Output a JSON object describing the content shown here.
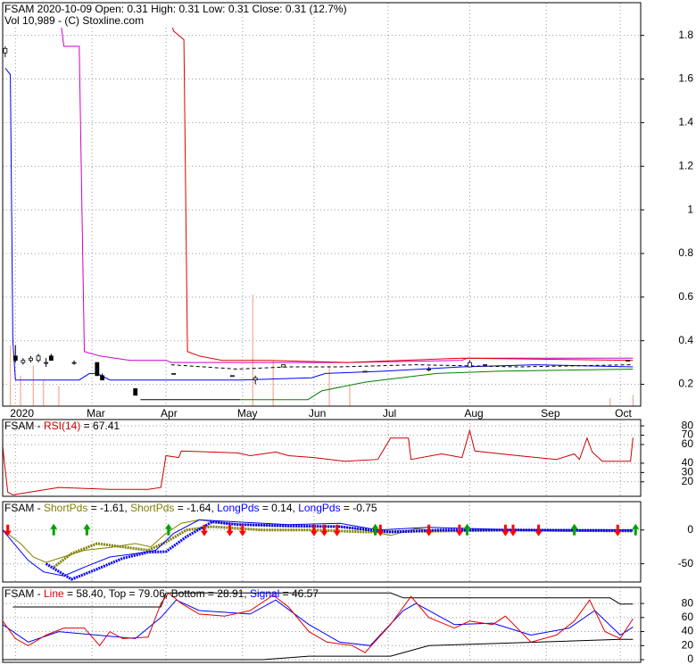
{
  "chart_data": [
    {
      "type": "stock",
      "title": "FSAM  2020-10-09 Open: 0.31  High: 0.31  Low: 0.31  Close: 0.31 (12.7%)",
      "subtitle": "Vol 10,989   - (C) Stoxline.com",
      "xlim": [
        -2,
        248
      ],
      "xticks": [
        {
          "value": 3,
          "label": "2020"
        },
        {
          "value": 33,
          "label": "Mar"
        },
        {
          "value": 62,
          "label": "Apr"
        },
        {
          "value": 92,
          "label": "May"
        },
        {
          "value": 120,
          "label": "Jun"
        },
        {
          "value": 149,
          "label": "Jul"
        },
        {
          "value": 181,
          "label": "Aug"
        },
        {
          "value": 211,
          "label": "Sep"
        },
        {
          "value": 240,
          "label": "Oct"
        }
      ],
      "ylim": [
        0.1,
        1.95
      ],
      "yticks": [
        0.2,
        0.4,
        0.6,
        0.8,
        1.0,
        1.2,
        1.4,
        1.6,
        1.8
      ],
      "grid": true,
      "series": [
        {
          "color": "#cc00cc",
          "x": [
            20,
            22,
            28,
            30,
            36,
            48,
            62,
            64,
            133,
            178,
            180,
            245
          ],
          "values": [
            1.93,
            1.75,
            1.75,
            0.35,
            0.33,
            0.31,
            0.31,
            0.3,
            0.3,
            0.31,
            0.32,
            0.32
          ]
        },
        {
          "color": "#e00000",
          "x": [
            58,
            64,
            65,
            69,
            70.4,
            75,
            84,
            102,
            133,
            178,
            245
          ],
          "values": [
            1.85,
            1.85,
            1.82,
            1.78,
            0.35,
            0.33,
            0.31,
            0.31,
            0.3,
            0.32,
            0.31
          ]
        },
        {
          "color": "#0000ff",
          "x": [
            -1,
            1,
            2,
            3,
            28,
            32,
            35,
            40,
            63,
            91,
            119,
            124.5,
            147,
            178,
            207,
            245
          ],
          "values": [
            1.65,
            1.62,
            0.4,
            0.22,
            0.22,
            0.25,
            0.25,
            0.22,
            0.22,
            0.22,
            0.23,
            0.25,
            0.26,
            0.28,
            0.29,
            0.28
          ]
        },
        {
          "color": "#008000",
          "x": [
            91,
            117.6,
            123,
            140,
            168,
            192,
            245
          ],
          "values": [
            0.13,
            0.13,
            0.17,
            0.21,
            0.25,
            0.26,
            0.27
          ]
        },
        {
          "color": "#000000",
          "x": [
            52,
            91
          ],
          "values": [
            0.13,
            0.13
          ]
        },
        {
          "color": "#000000",
          "dashed": true,
          "x": [
            64,
            90,
            110,
            130,
            160,
            200,
            245
          ],
          "values": [
            0.29,
            0.27,
            0.28,
            0.28,
            0.29,
            0.28,
            0.29
          ]
        }
      ],
      "candles": {
        "x": [
          -1,
          3,
          6,
          9,
          12,
          15,
          17,
          26,
          35,
          37,
          50,
          65,
          88,
          97,
          108,
          140,
          165,
          181,
          187,
          243
        ],
        "open": [
          1.72,
          0.33,
          0.3,
          0.31,
          0.31,
          0.3,
          0.33,
          0.3,
          0.3,
          0.24,
          0.18,
          0.25,
          0.24,
          0.22,
          0.28,
          0.26,
          0.27,
          0.28,
          0.29,
          0.31
        ],
        "high": [
          1.75,
          0.38,
          0.32,
          0.33,
          0.34,
          0.32,
          0.34,
          0.31,
          0.3,
          0.25,
          0.18,
          0.25,
          0.24,
          0.24,
          0.29,
          0.26,
          0.28,
          0.31,
          0.29,
          0.31
        ],
        "low": [
          1.7,
          0.3,
          0.29,
          0.3,
          0.3,
          0.28,
          0.31,
          0.29,
          0.24,
          0.22,
          0.15,
          0.25,
          0.24,
          0.2,
          0.28,
          0.26,
          0.26,
          0.28,
          0.29,
          0.31
        ],
        "close": [
          1.74,
          0.31,
          0.31,
          0.32,
          0.33,
          0.3,
          0.31,
          0.3,
          0.24,
          0.22,
          0.15,
          0.25,
          0.24,
          0.23,
          0.29,
          0.26,
          0.27,
          0.3,
          0.29,
          0.31
        ]
      },
      "volume": {
        "color": "#f4a890",
        "x": [
          1,
          5,
          10,
          14,
          20,
          96,
          104,
          126,
          134,
          236,
          245
        ],
        "values": [
          60000,
          30000,
          40000,
          25000,
          20000,
          110000,
          45000,
          40000,
          20000,
          8000,
          10989
        ]
      }
    },
    {
      "type": "line",
      "title_parts": [
        {
          "text": "FSAM - "
        },
        {
          "text": "RSI(14)",
          "color": "#cc0000"
        },
        {
          "text": " = 67.41"
        }
      ],
      "xlim": [
        -2,
        248
      ],
      "ylim": [
        4.5,
        86.8
      ],
      "yticks": [
        20,
        30,
        40,
        60,
        70,
        80
      ],
      "grid": true,
      "series": [
        {
          "color": "#cc0000",
          "x": [
            -2,
            0,
            2,
            20,
            40,
            55,
            60,
            62,
            67,
            68,
            90,
            95,
            105,
            110,
            120,
            132,
            145,
            150,
            157,
            158,
            170,
            178,
            181,
            183,
            200,
            215,
            222,
            224,
            227,
            229,
            233,
            244,
            245
          ],
          "values": [
            57.7,
            9,
            6,
            14,
            12,
            12,
            14,
            48,
            46,
            53,
            51,
            48,
            52,
            48,
            46,
            42,
            44,
            67,
            67,
            44,
            50,
            46,
            75,
            53,
            48,
            44,
            50,
            44,
            67,
            52,
            42,
            42,
            67.41
          ]
        }
      ]
    },
    {
      "type": "line",
      "title_parts": [
        {
          "text": "FSAM - "
        },
        {
          "text": "ShortPds",
          "color": "#808000"
        },
        {
          "text": " = -1.61, "
        },
        {
          "text": "ShortPds",
          "color": "#808000"
        },
        {
          "text": " = -1.64, "
        },
        {
          "text": "LongPds",
          "color": "#0000ff"
        },
        {
          "text": " = 0.14, "
        },
        {
          "text": "LongPds",
          "color": "#0000ff"
        },
        {
          "text": " = -0.75"
        }
      ],
      "xlim": [
        -2,
        248
      ],
      "ylim": [
        -77,
        42
      ],
      "yticks": [
        -50,
        0
      ],
      "grid": true,
      "series": [
        {
          "color": "#808000",
          "x": [
            -2,
            5,
            10,
            15,
            20,
            30,
            40,
            50,
            56,
            62,
            68,
            75,
            85,
            95,
            110,
            130,
            140,
            150,
            160,
            170,
            190,
            220,
            245
          ],
          "values": [
            0,
            -20,
            -40,
            -48,
            -42,
            -30,
            -26,
            -20,
            -25,
            -5,
            10,
            15,
            10,
            8,
            5,
            5,
            0,
            -8,
            2,
            -2,
            0,
            -2,
            -1.61
          ]
        },
        {
          "color": "#808000",
          "dotted": true,
          "x": [
            18,
            25,
            35,
            45,
            55,
            62,
            70,
            80,
            100,
            120,
            140,
            160,
            200,
            245
          ],
          "values": [
            -55,
            -35,
            -20,
            -25,
            -30,
            -18,
            0,
            5,
            0,
            0,
            -3,
            -2,
            0,
            -1.64
          ]
        },
        {
          "color": "#0000ff",
          "x": [
            -2,
            8,
            14,
            22,
            30,
            40,
            50,
            58,
            65,
            75,
            90,
            110,
            130,
            145,
            165,
            200,
            245
          ],
          "values": [
            0,
            -45,
            -62,
            -68,
            -55,
            -40,
            -35,
            -30,
            -5,
            15,
            12,
            8,
            10,
            0,
            4,
            0,
            0.14
          ]
        },
        {
          "color": "#0000ff",
          "dotted": true,
          "x": [
            15,
            25,
            35,
            45,
            55,
            62,
            70,
            80,
            90,
            110,
            130,
            150,
            170,
            200,
            245
          ],
          "values": [
            -50,
            -73,
            -58,
            -42,
            -33,
            -32,
            -10,
            12,
            8,
            6,
            5,
            -3,
            0,
            0,
            -0.75
          ]
        }
      ],
      "buy_signals": [
        18,
        31,
        63,
        144,
        180,
        222,
        246
      ],
      "sell_signals": [
        0,
        77,
        87,
        92,
        120,
        124,
        129,
        146,
        165,
        177,
        195,
        198,
        208,
        239
      ]
    },
    {
      "type": "line",
      "title_parts": [
        {
          "text": "FSAM - "
        },
        {
          "text": "Line",
          "color": "#e00000"
        },
        {
          "text": " = 58.40, "
        },
        {
          "text": "Top"
        },
        {
          "text": " = 79.06, "
        },
        {
          "text": "Bottom"
        },
        {
          "text": " = 28.91, "
        },
        {
          "text": "Signal",
          "color": "#0000ff"
        },
        {
          "text": " = 46.57"
        }
      ],
      "xlim": [
        -2,
        248
      ],
      "ylim": [
        -3.8,
        103
      ],
      "yticks": [
        0,
        20,
        40,
        60,
        80
      ],
      "grid": true,
      "series": [
        {
          "color": "#000000",
          "x": [
            2,
            60,
            62,
            150,
            155,
            236,
            240,
            245
          ],
          "values": [
            75,
            75,
            95,
            95,
            88,
            88,
            79.06,
            79.06
          ]
        },
        {
          "color": "#000000",
          "x": [
            -2,
            100,
            118,
            150,
            165,
            240,
            245
          ],
          "values": [
            0,
            0,
            5,
            5,
            20,
            28.91,
            28.91
          ]
        },
        {
          "color": "#0000ff",
          "x": [
            -2,
            8,
            20,
            35,
            50,
            60,
            66,
            75,
            95,
            105,
            118,
            130,
            142,
            155,
            160,
            175,
            190,
            205,
            220,
            230,
            240,
            245
          ],
          "values": [
            50,
            25,
            40,
            35,
            30,
            60,
            85,
            70,
            65,
            85,
            50,
            25,
            20,
            70,
            80,
            50,
            52,
            35,
            45,
            70,
            35,
            46.57
          ]
        },
        {
          "color": "#e00000",
          "x": [
            -2,
            3,
            8,
            15,
            22,
            30,
            36,
            40,
            45,
            55,
            60,
            63,
            68,
            75,
            85,
            95,
            104,
            110,
            118,
            125,
            135,
            140,
            150,
            158,
            165,
            175,
            181,
            190,
            195,
            205,
            215,
            222,
            228,
            234,
            240,
            245
          ],
          "values": [
            55,
            30,
            20,
            35,
            45,
            45,
            20,
            40,
            30,
            32,
            80,
            95,
            80,
            65,
            62,
            70,
            92,
            75,
            40,
            25,
            20,
            10,
            50,
            90,
            60,
            45,
            55,
            50,
            62,
            25,
            35,
            55,
            85,
            40,
            30,
            58.4
          ]
        }
      ]
    }
  ]
}
